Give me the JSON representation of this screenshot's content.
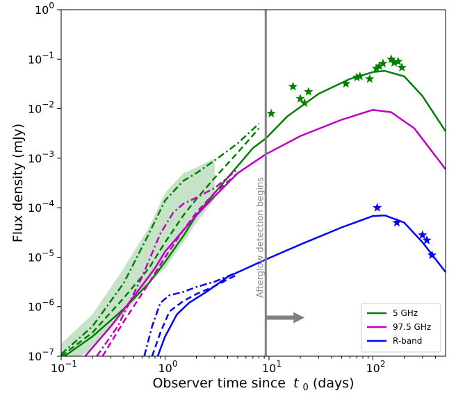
{
  "chart_data": {
    "type": "line",
    "xlabel": "Observer time since",
    "xlabel_symbol": "t",
    "xlabel_subscript": "0",
    "xlabel_suffix": " (days)",
    "ylabel": "Flux density (mJy)",
    "x_scale": "log",
    "y_scale": "log",
    "xlim": [
      0.1,
      500
    ],
    "ylim": [
      1e-07,
      1
    ],
    "x_ticks": [
      {
        "value": 0.1,
        "base": "10",
        "exp": "−1"
      },
      {
        "value": 1,
        "base": "10",
        "exp": "0"
      },
      {
        "value": 10,
        "base": "10",
        "exp": "1"
      },
      {
        "value": 100,
        "base": "10",
        "exp": "2"
      }
    ],
    "y_ticks": [
      {
        "value": 1e-07,
        "base": "10",
        "exp": "−7"
      },
      {
        "value": 1e-06,
        "base": "10",
        "exp": "−6"
      },
      {
        "value": 1e-05,
        "base": "10",
        "exp": "−5"
      },
      {
        "value": 0.0001,
        "base": "10",
        "exp": "−4"
      },
      {
        "value": 0.001,
        "base": "10",
        "exp": "−3"
      },
      {
        "value": 0.01,
        "base": "10",
        "exp": "−2"
      },
      {
        "value": 0.1,
        "base": "10",
        "exp": "−1"
      },
      {
        "value": 1,
        "base": "10",
        "exp": "0"
      }
    ],
    "grid": false,
    "legend_position": "lower-right",
    "legend": [
      {
        "label": "5 GHz",
        "color": "#008000"
      },
      {
        "label": "97.5 GHz",
        "color": "#bf00bf"
      },
      {
        "label": "R-band",
        "color": "#0000ff"
      }
    ],
    "annotation": {
      "text": "Afterglow detection begins",
      "x": 9.3,
      "line_color": "#808080",
      "arrow_from": [
        9.3,
        6e-07
      ],
      "arrow_to": [
        22,
        6e-07
      ]
    },
    "series": [
      {
        "band": "5 GHz",
        "style": "solid",
        "color": "#008000",
        "x": [
          0.1,
          0.2,
          0.4,
          0.7,
          1,
          1.5,
          2,
          3,
          5,
          7,
          9.3,
          15,
          30,
          60,
          100,
          130,
          200,
          300,
          500
        ],
        "y": [
          9e-08,
          2.5e-07,
          9e-07,
          3e-06,
          8e-06,
          2.7e-05,
          7e-05,
          0.0002,
          0.0007,
          0.0016,
          0.0025,
          0.007,
          0.02,
          0.04,
          0.055,
          0.058,
          0.045,
          0.018,
          0.0035
        ]
      },
      {
        "band": "5 GHz",
        "style": "dashed",
        "color": "#008000",
        "x": [
          0.1,
          0.2,
          0.4,
          0.7,
          1,
          1.5,
          2,
          3,
          5,
          8
        ],
        "y": [
          1e-07,
          3e-07,
          1.5e-06,
          6e-06,
          2e-05,
          7e-05,
          0.00015,
          0.0004,
          0.0013,
          0.004
        ]
      },
      {
        "band": "5 GHz",
        "style": "dashdot",
        "color": "#008000",
        "x": [
          0.1,
          0.2,
          0.4,
          0.7,
          1,
          1.5,
          2,
          3,
          5,
          8
        ],
        "y": [
          1.1e-07,
          4e-07,
          3e-06,
          3e-05,
          0.00014,
          0.00035,
          0.0005,
          0.0009,
          0.002,
          0.005
        ]
      },
      {
        "band": "97.5 GHz",
        "style": "solid",
        "color": "#bf00bf",
        "x": [
          0.17,
          0.3,
          0.5,
          0.8,
          1,
          1.5,
          2,
          3,
          5,
          9.3,
          20,
          50,
          100,
          150,
          250,
          500
        ],
        "y": [
          1e-07,
          4e-07,
          1.6e-06,
          6e-06,
          1.3e-05,
          3.5e-05,
          7e-05,
          0.00017,
          0.0005,
          0.0012,
          0.0028,
          0.006,
          0.0095,
          0.0085,
          0.004,
          0.0006
        ]
      },
      {
        "band": "97.5 GHz",
        "style": "dashed",
        "color": "#bf00bf",
        "x": [
          0.25,
          0.4,
          0.7,
          1,
          1.5,
          2,
          3,
          5
        ],
        "y": [
          1e-07,
          5e-07,
          3e-06,
          1e-05,
          3.5e-05,
          8e-05,
          0.0002,
          0.0005
        ]
      },
      {
        "band": "97.5 GHz",
        "style": "dashdot",
        "color": "#bf00bf",
        "x": [
          0.22,
          0.35,
          0.6,
          0.9,
          1.2,
          1.5,
          2,
          3,
          5
        ],
        "y": [
          1e-07,
          4e-07,
          4e-06,
          3e-05,
          8e-05,
          0.00012,
          0.00016,
          0.00025,
          0.0006
        ]
      },
      {
        "band": "R-band",
        "style": "solid",
        "color": "#0000ff",
        "x": [
          0.85,
          1,
          1.3,
          1.7,
          2.5,
          4,
          9.3,
          20,
          50,
          100,
          130,
          200,
          300,
          500
        ],
        "y": [
          1e-07,
          2.5e-07,
          7e-07,
          1.2e-06,
          2e-06,
          4e-06,
          9e-06,
          1.8e-05,
          4e-05,
          6.8e-05,
          7e-05,
          5e-05,
          2e-05,
          5e-06
        ]
      },
      {
        "band": "R-band",
        "style": "dashed",
        "color": "#0000ff",
        "x": [
          0.75,
          0.9,
          1.1,
          1.5,
          2,
          3,
          5
        ],
        "y": [
          1e-07,
          3e-07,
          8e-07,
          1.3e-06,
          1.8e-06,
          2.6e-06,
          4.5e-06
        ]
      },
      {
        "band": "R-band",
        "style": "dashdot",
        "color": "#0000ff",
        "x": [
          0.63,
          0.75,
          0.9,
          1.1,
          1.5,
          2,
          3,
          5
        ],
        "y": [
          1e-07,
          4e-07,
          1.2e-06,
          1.7e-06,
          2e-06,
          2.5e-06,
          3.2e-06,
          5e-06
        ]
      }
    ],
    "band": {
      "color": "#008000",
      "x": [
        0.1,
        0.2,
        0.4,
        0.7,
        1,
        1.5,
        2,
        3
      ],
      "low": [
        6e-08,
        1.4e-07,
        7e-07,
        3e-06,
        6e-06,
        2e-05,
        5e-05,
        0.00015
      ],
      "high": [
        1.8e-07,
        7e-07,
        6e-06,
        4e-05,
        0.0002,
        0.0005,
        0.00065,
        0.001
      ]
    },
    "observations": [
      {
        "band": "5 GHz",
        "color": "#008000",
        "x": [
          10.5,
          17,
          20,
          22,
          24,
          55,
          70,
          75,
          93,
          108,
          115,
          125,
          150,
          160,
          175,
          190
        ],
        "y": [
          0.008,
          0.028,
          0.016,
          0.013,
          0.022,
          0.032,
          0.043,
          0.045,
          0.04,
          0.065,
          0.072,
          0.082,
          0.1,
          0.085,
          0.09,
          0.068
        ]
      },
      {
        "band": "R-band",
        "color": "#0000ff",
        "x": [
          110,
          170,
          300,
          330,
          370
        ],
        "y": [
          0.0001,
          5e-05,
          2.8e-05,
          2.2e-05,
          1.1e-05
        ]
      }
    ]
  }
}
